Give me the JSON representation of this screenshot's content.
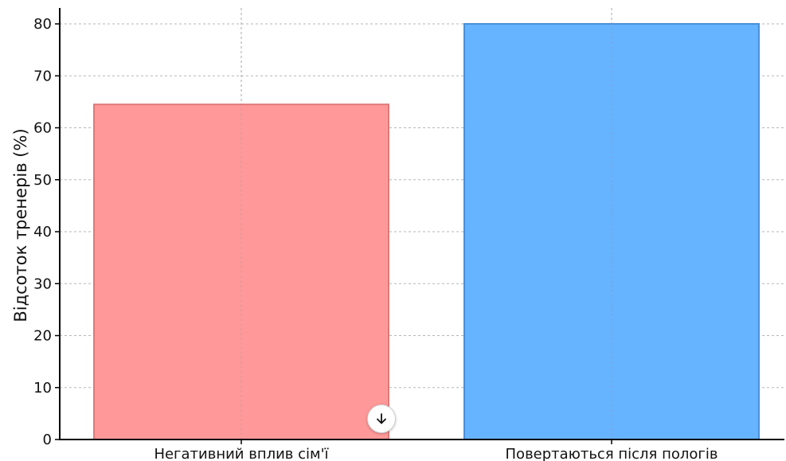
{
  "chart_data": {
    "type": "bar",
    "title": "",
    "xlabel": "",
    "ylabel": "Відсоток тренерів (%)",
    "categories": [
      "Негативний вплив сім'ї",
      "Повертаються після пологів"
    ],
    "values": [
      64.5,
      80
    ],
    "colors": [
      "#ff9999",
      "#66b3ff"
    ],
    "edge_colors": [
      "#e07a7a",
      "#4a90d9"
    ],
    "ylim": [
      0,
      83
    ],
    "yticks": [
      0,
      10,
      20,
      30,
      40,
      50,
      60,
      70,
      80
    ],
    "grid": true
  },
  "controls": {
    "download_icon": "arrow-down-icon"
  }
}
